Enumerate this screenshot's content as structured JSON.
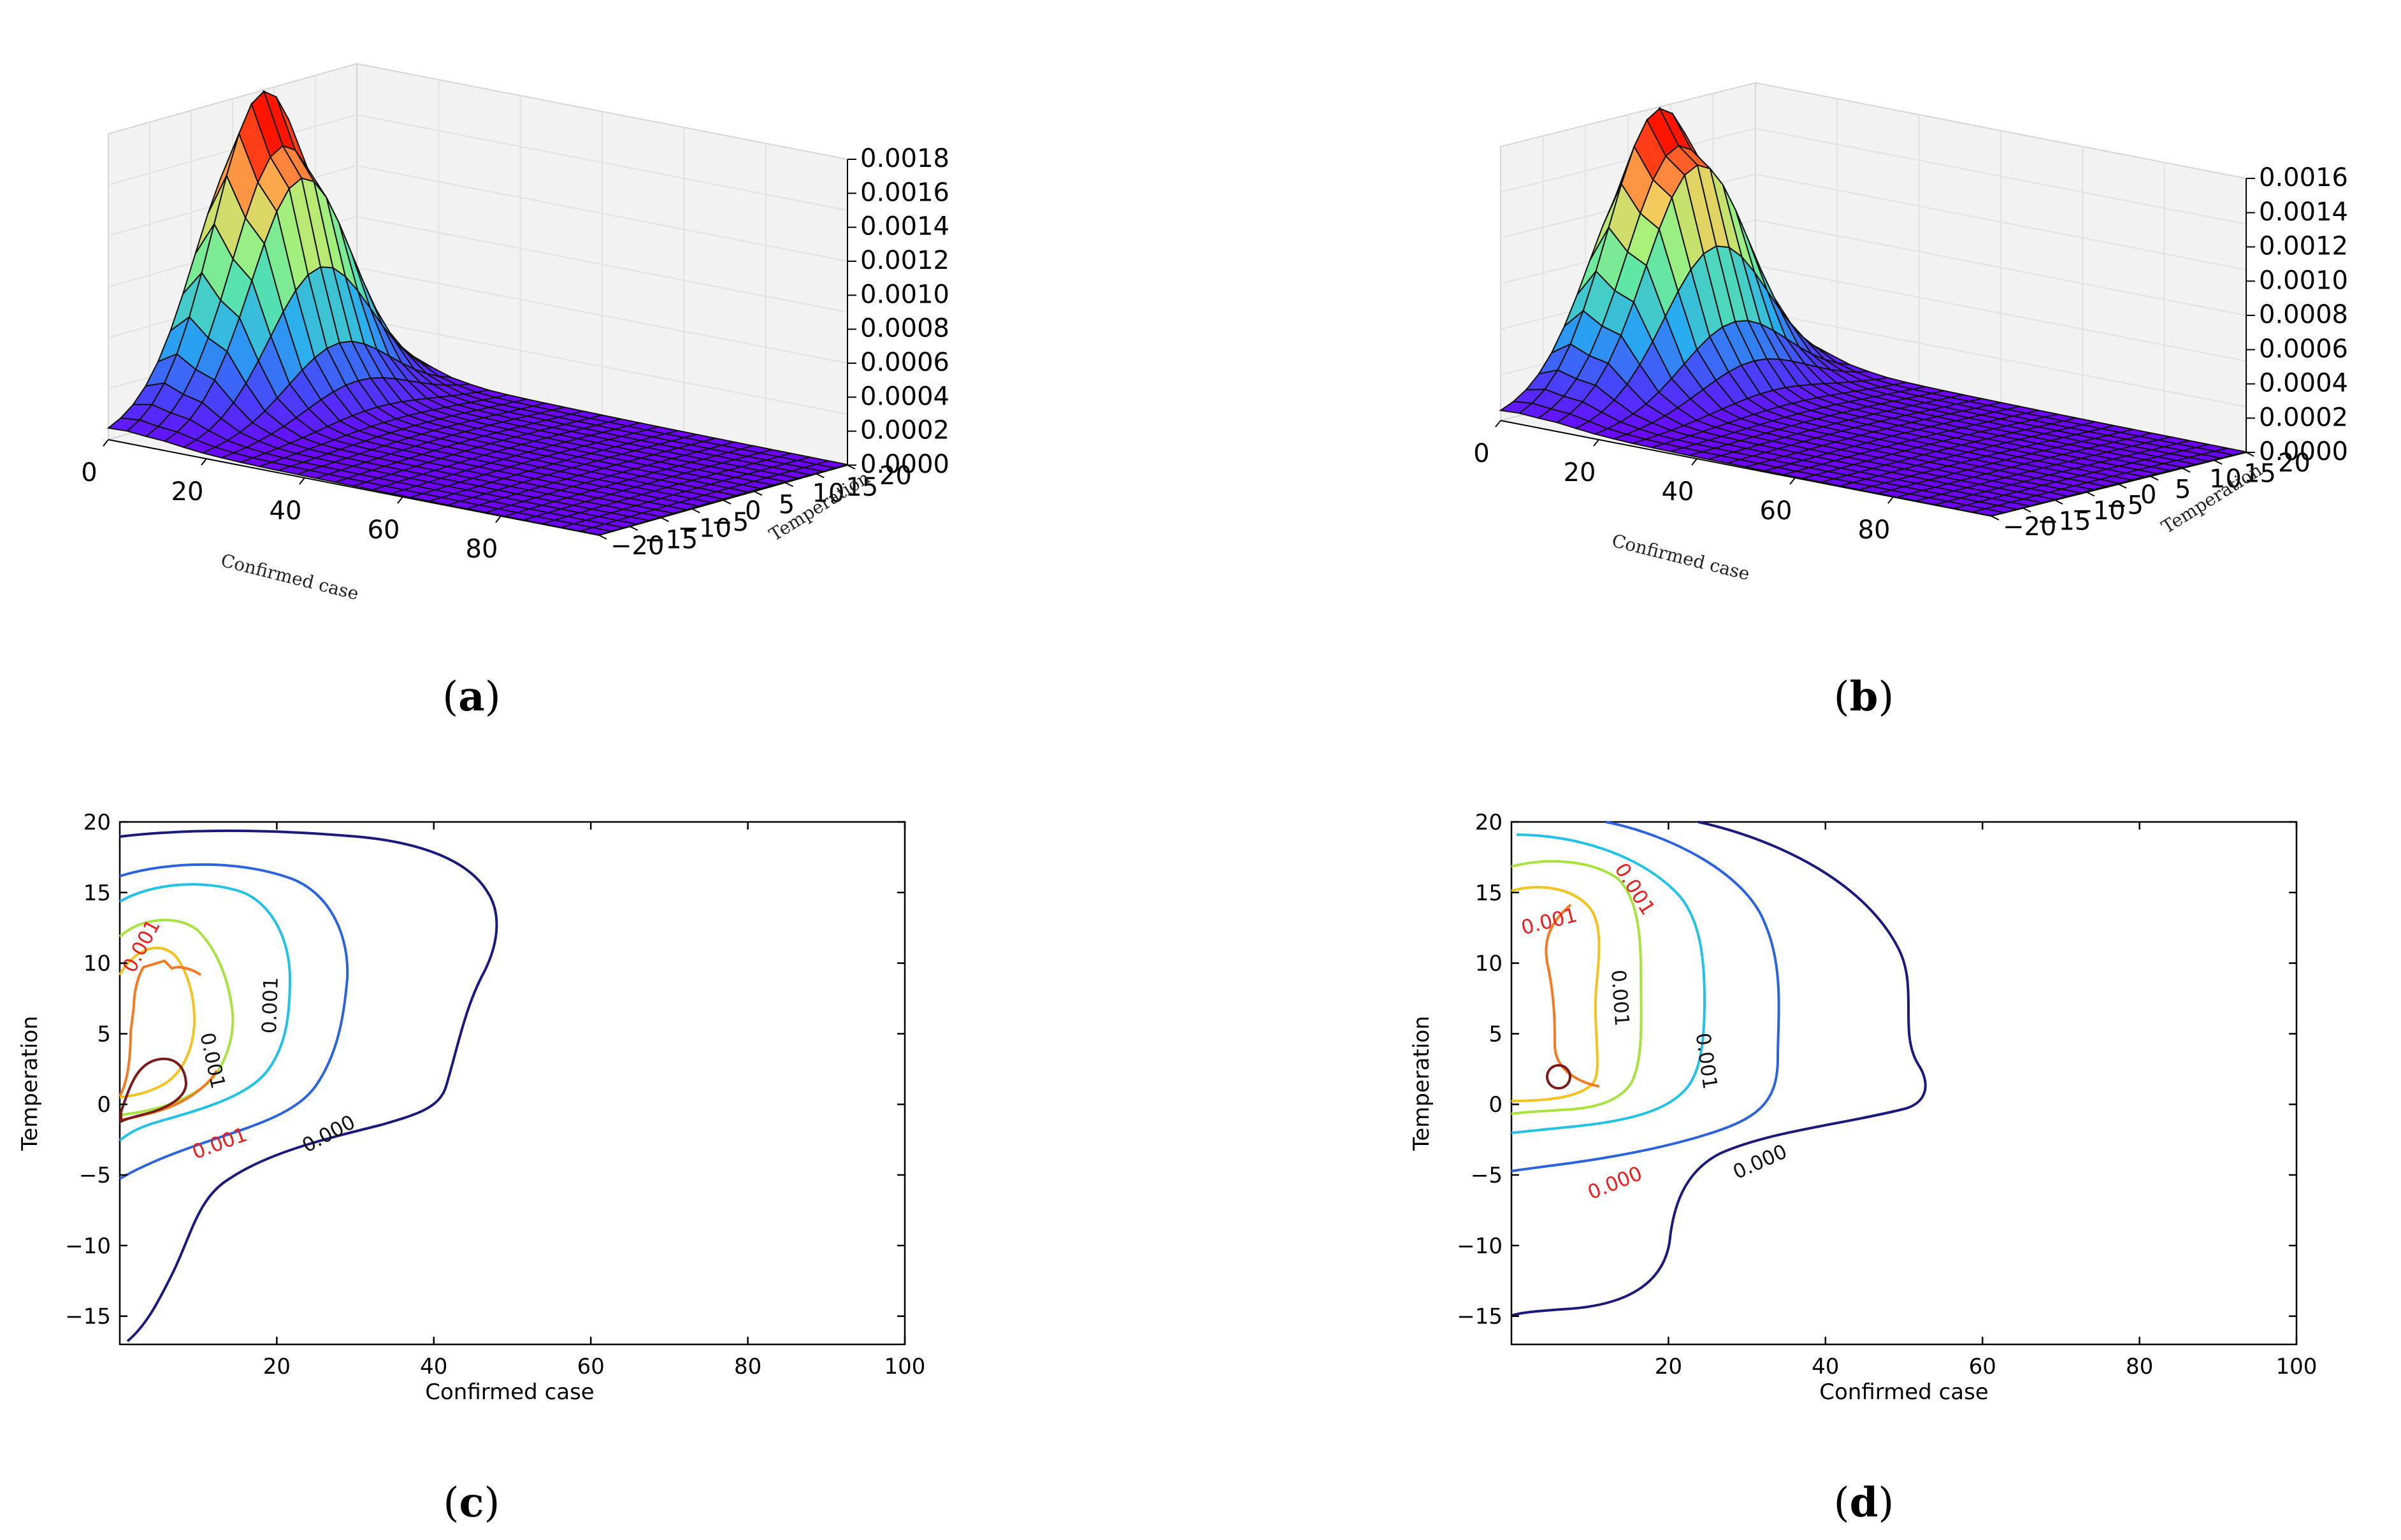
{
  "panels": [
    {
      "id": "a",
      "caption_open": "(",
      "caption_letter": "a",
      "caption_close": ")",
      "chart_data": {
        "type": "surface3d",
        "xlabel": "Confirmed case",
        "ylabel": "Temperation",
        "zlabel": "",
        "xlim": [
          0,
          100
        ],
        "ylim": [
          -20,
          20
        ],
        "zlim": [
          0,
          0.0018
        ],
        "x_ticks": [
          "0",
          "20",
          "40",
          "60",
          "80"
        ],
        "y_ticks": [
          "−20",
          "−15",
          "−10",
          "−5",
          "0",
          "5",
          "10",
          "15",
          "20"
        ],
        "z_ticks": [
          "0.0000",
          "0.0002",
          "0.0004",
          "0.0006",
          "0.0008",
          "0.0010",
          "0.0012",
          "0.0014",
          "0.0016",
          "0.0018"
        ],
        "peak": {
          "x": 5,
          "y": 2,
          "z": 0.00165
        },
        "colormap": "rainbow"
      }
    },
    {
      "id": "b",
      "caption_open": "(",
      "caption_letter": "b",
      "caption_close": ")",
      "chart_data": {
        "type": "surface3d",
        "xlabel": "Confirmed case",
        "ylabel": "Temperation",
        "zlabel": "",
        "xlim": [
          0,
          100
        ],
        "ylim": [
          -20,
          20
        ],
        "zlim": [
          0,
          0.0016
        ],
        "x_ticks": [
          "0",
          "20",
          "40",
          "60",
          "80"
        ],
        "y_ticks": [
          "−20",
          "−15",
          "−10",
          "−5",
          "0",
          "5",
          "10",
          "15",
          "20"
        ],
        "z_ticks": [
          "0.0000",
          "0.0002",
          "0.0004",
          "0.0006",
          "0.0008",
          "0.0010",
          "0.0012",
          "0.0014",
          "0.0016"
        ],
        "peak": {
          "x": 6,
          "y": 2,
          "z": 0.0015
        },
        "colormap": "rainbow"
      }
    },
    {
      "id": "c",
      "caption_open": "(",
      "caption_letter": "c",
      "caption_close": ")",
      "chart_data": {
        "type": "contour",
        "xlabel": "Confirmed case",
        "ylabel": "Temperation",
        "xlim": [
          0,
          100
        ],
        "ylim": [
          -17,
          20
        ],
        "x_ticks": [
          20,
          40,
          60,
          80,
          100
        ],
        "y_ticks": [
          -15,
          -10,
          -5,
          0,
          5,
          10,
          15,
          20
        ],
        "y_tick_labels": [
          "−15",
          "−10",
          "−5",
          "0",
          "5",
          "10",
          "15",
          "20"
        ],
        "contour_labels": [
          {
            "text": "0.001",
            "x": 3.5,
            "y": 11,
            "color": "#ee1c1c",
            "rotate": -62
          },
          {
            "text": "0.001",
            "x": 11,
            "y": 3,
            "color": "#111111",
            "rotate": 78
          },
          {
            "text": "0.001",
            "x": 20,
            "y": 7,
            "color": "#111111",
            "rotate": -88
          },
          {
            "text": "0.001",
            "x": 13,
            "y": -3.2,
            "color": "#ee1c1c",
            "rotate": -20
          },
          {
            "text": "0.000",
            "x": 27,
            "y": -2.5,
            "color": "#111111",
            "rotate": -28
          }
        ],
        "peak": {
          "x": 5,
          "y": 1
        }
      }
    },
    {
      "id": "d",
      "caption_open": "(",
      "caption_letter": "d",
      "caption_close": ")",
      "chart_data": {
        "type": "contour",
        "xlabel": "Confirmed case",
        "ylabel": "Temperation",
        "xlim": [
          0,
          100
        ],
        "ylim": [
          -17,
          20
        ],
        "x_ticks": [
          20,
          40,
          60,
          80,
          100
        ],
        "y_ticks": [
          -15,
          -10,
          -5,
          0,
          5,
          10,
          15,
          20
        ],
        "y_tick_labels": [
          "−15",
          "−10",
          "−5",
          "0",
          "5",
          "10",
          "15",
          "20"
        ],
        "contour_labels": [
          {
            "text": "0.001",
            "x": 15,
            "y": 15,
            "color": "#ee1c1c",
            "rotate": 58
          },
          {
            "text": "0.001",
            "x": 5,
            "y": 12.5,
            "color": "#ee1c1c",
            "rotate": -14
          },
          {
            "text": "0.001",
            "x": 13,
            "y": 7.5,
            "color": "#111111",
            "rotate": 86
          },
          {
            "text": "0.001",
            "x": 24,
            "y": 3,
            "color": "#111111",
            "rotate": 82
          },
          {
            "text": "0.000",
            "x": 13.5,
            "y": -6,
            "color": "#ee1c1c",
            "rotate": -22
          },
          {
            "text": "0.000",
            "x": 32,
            "y": -4.5,
            "color": "#111111",
            "rotate": -24
          }
        ],
        "peak": {
          "x": 6,
          "y": 1.5
        }
      }
    }
  ]
}
